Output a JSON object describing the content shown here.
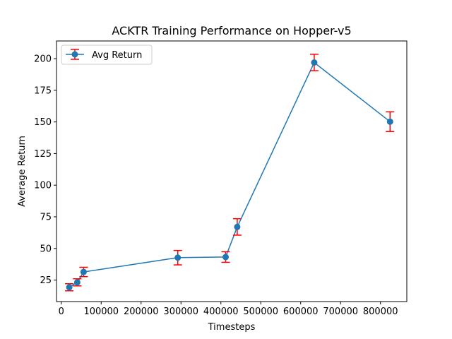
{
  "chart_data": {
    "type": "line",
    "title": "ACKTR Training Performance on Hopper-v5",
    "xlabel": "Timesteps",
    "ylabel": "Average Return",
    "xlim": [
      -12000,
      866000
    ],
    "ylim": [
      8,
      214
    ],
    "xticks": [
      0,
      100000,
      200000,
      300000,
      400000,
      500000,
      600000,
      700000,
      800000
    ],
    "yticks": [
      25,
      50,
      75,
      100,
      125,
      150,
      175,
      200
    ],
    "grid": false,
    "legend_position": "top-left",
    "series": [
      {
        "name": "Avg Return",
        "color": "#1f77b4",
        "error_color": "#ff0000",
        "x": [
          20000,
          40000,
          56000,
          292000,
          412000,
          441000,
          634000,
          824000
        ],
        "y": [
          19.3,
          23.2,
          31.4,
          42.7,
          43.2,
          67.0,
          197.0,
          150.2
        ],
        "yerr": [
          2.8,
          2.8,
          3.7,
          5.7,
          4.2,
          6.5,
          6.5,
          7.8
        ]
      }
    ]
  }
}
